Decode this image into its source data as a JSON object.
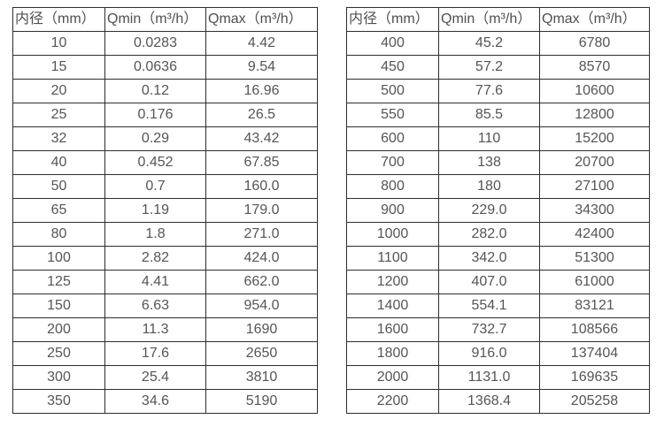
{
  "chart_data": [
    {
      "type": "table",
      "title": "",
      "columns": [
        "内径（mm）",
        "Qmin（m³/h）",
        "Qmax（m³/h）"
      ],
      "rows": [
        [
          "10",
          "0.0283",
          "4.42"
        ],
        [
          "15",
          "0.0636",
          "9.54"
        ],
        [
          "20",
          "0.12",
          "16.96"
        ],
        [
          "25",
          "0.176",
          "26.5"
        ],
        [
          "32",
          "0.29",
          "43.42"
        ],
        [
          "40",
          "0.452",
          "67.85"
        ],
        [
          "50",
          "0.7",
          "160.0"
        ],
        [
          "65",
          "1.19",
          "179.0"
        ],
        [
          "80",
          "1.8",
          "271.0"
        ],
        [
          "100",
          "2.82",
          "424.0"
        ],
        [
          "125",
          "4.41",
          "662.0"
        ],
        [
          "150",
          "6.63",
          "954.0"
        ],
        [
          "200",
          "11.3",
          "1690"
        ],
        [
          "250",
          "17.6",
          "2650"
        ],
        [
          "300",
          "25.4",
          "3810"
        ],
        [
          "350",
          "34.6",
          "5190"
        ]
      ]
    },
    {
      "type": "table",
      "title": "",
      "columns": [
        "内径（mm）",
        "Qmin（m³/h）",
        "Qmax（m³/h）"
      ],
      "rows": [
        [
          "400",
          "45.2",
          "6780"
        ],
        [
          "450",
          "57.2",
          "8570"
        ],
        [
          "500",
          "77.6",
          "10600"
        ],
        [
          "550",
          "85.5",
          "12800"
        ],
        [
          "600",
          "110",
          "15200"
        ],
        [
          "700",
          "138",
          "20700"
        ],
        [
          "800",
          "180",
          "27100"
        ],
        [
          "900",
          "229.0",
          "34300"
        ],
        [
          "1000",
          "282.0",
          "42400"
        ],
        [
          "1100",
          "342.0",
          "51300"
        ],
        [
          "1200",
          "407.0",
          "61000"
        ],
        [
          "1400",
          "554.1",
          "83121"
        ],
        [
          "1600",
          "732.7",
          "108566"
        ],
        [
          "1800",
          "916.0",
          "137404"
        ],
        [
          "2000",
          "1131.0",
          "169635"
        ],
        [
          "2200",
          "1368.4",
          "205258"
        ]
      ]
    }
  ],
  "colors": {
    "border": "#2e2e2e",
    "text": "#555555",
    "background": "#ffffff"
  }
}
